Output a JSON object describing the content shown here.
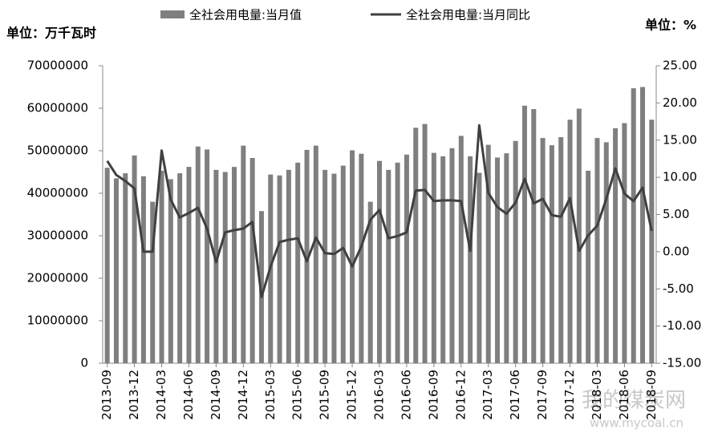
{
  "chart_data": {
    "type": "bar_line",
    "y_unit": "单位：万千瓦时",
    "y2_unit": "单位：%",
    "watermark": [
      "我的煤炭网",
      "www.mycoal.cn"
    ],
    "categories": [
      "2013-09",
      null,
      null,
      "2013-12",
      null,
      null,
      "2014-03",
      null,
      null,
      "2014-06",
      null,
      null,
      "2014-09",
      null,
      null,
      "2014-12",
      null,
      null,
      "2015-03",
      null,
      null,
      "2015-06",
      null,
      null,
      "2015-09",
      null,
      null,
      "2015-12",
      null,
      null,
      "2016-03",
      null,
      null,
      "2016-06",
      null,
      null,
      "2016-09",
      null,
      null,
      "2016-12",
      null,
      null,
      "2017-03",
      null,
      null,
      "2017-06",
      null,
      null,
      "2017-09",
      null,
      null,
      "2017-12",
      null,
      null,
      "2018-03",
      null,
      null,
      "2018-06",
      null,
      null,
      "2018-09"
    ],
    "series": [
      {
        "name": "全社会用电量:当月值",
        "type": "bar",
        "color": "#7f7f7f",
        "axis": "y",
        "values": [
          46000000,
          43500000,
          44700000,
          48900000,
          44000000,
          38000000,
          45300000,
          43300000,
          44700000,
          46200000,
          51000000,
          50300000,
          45500000,
          45000000,
          46200000,
          51200000,
          48300000,
          35800000,
          44400000,
          44200000,
          45500000,
          47200000,
          50200000,
          51200000,
          45500000,
          44600000,
          46500000,
          50100000,
          49300000,
          38000000,
          47600000,
          45500000,
          47200000,
          49100000,
          55400000,
          56300000,
          49500000,
          48700000,
          50600000,
          53500000,
          48700000,
          44800000,
          51400000,
          48400000,
          49400000,
          52300000,
          60600000,
          59800000,
          53000000,
          51300000,
          53200000,
          57300000,
          59900000,
          45300000,
          53000000,
          52000000,
          55300000,
          56500000,
          64700000,
          65000000,
          57300000
        ]
      },
      {
        "name": "全社会用电量:当月同比",
        "type": "line",
        "color": "#404040",
        "axis": "y2",
        "values": [
          12.2,
          10.3,
          9.5,
          8.5,
          0,
          0,
          13.6,
          7,
          4.6,
          5.2,
          5.9,
          3.1,
          -1.4,
          2.6,
          2.9,
          3.1,
          4,
          -6.1,
          -2,
          1.3,
          1.6,
          1.8,
          -1.3,
          1.9,
          -0.2,
          -0.3,
          0.5,
          -2,
          0.7,
          4.3,
          5.6,
          1.8,
          2.1,
          2.6,
          8.2,
          8.3,
          6.8,
          6.9,
          6.9,
          6.8,
          0.1,
          17,
          7.9,
          6,
          5.1,
          6.6,
          9.8,
          6.5,
          7.1,
          4.9,
          4.7,
          7.2,
          0.1,
          2.2,
          3.5,
          7.1,
          11.2,
          7.8,
          6.8,
          8.6,
          2.8
        ]
      }
    ],
    "ylim": [
      0,
      70000000
    ],
    "yticks": [
      0,
      10000000,
      20000000,
      30000000,
      40000000,
      50000000,
      60000000,
      70000000
    ],
    "y2lim": [
      -15,
      25
    ],
    "y2ticks": [
      {
        "value": -15,
        "label": "-15.00"
      },
      {
        "value": -10,
        "label": "-10.00"
      },
      {
        "value": -5,
        "label": "-5.00"
      },
      {
        "value": 0,
        "label": "0.00"
      },
      {
        "value": 5,
        "label": "5.00"
      },
      {
        "value": 10,
        "label": "10.00"
      },
      {
        "value": 15,
        "label": "15.00"
      },
      {
        "value": 20,
        "label": "20.00"
      },
      {
        "value": 25,
        "label": "25.00"
      }
    ],
    "legend": "top"
  }
}
